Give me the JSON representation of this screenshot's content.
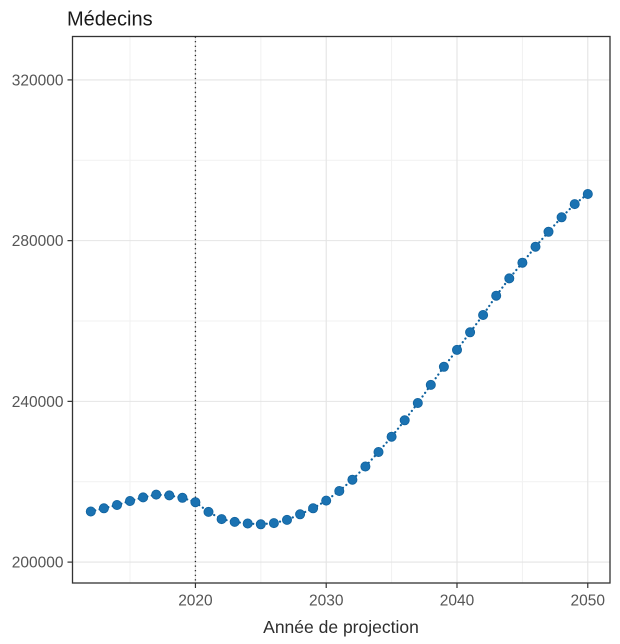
{
  "page": {
    "background": "#ffffff"
  },
  "chart": {
    "title": "Médecins",
    "x_axis_label": "Année de projection"
  },
  "chart_data": {
    "type": "line",
    "title": "Médecins",
    "xlabel": "Année de projection",
    "ylabel": "",
    "style": "points-with-dotted-line",
    "x": [
      2012,
      2013,
      2014,
      2015,
      2016,
      2017,
      2018,
      2019,
      2020,
      2021,
      2022,
      2023,
      2024,
      2025,
      2026,
      2027,
      2028,
      2029,
      2030,
      2031,
      2032,
      2033,
      2034,
      2035,
      2036,
      2037,
      2038,
      2039,
      2040,
      2041,
      2042,
      2043,
      2044,
      2045,
      2046,
      2047,
      2048,
      2049,
      2050
    ],
    "y": [
      212600,
      213400,
      214200,
      215200,
      216100,
      216800,
      216600,
      216000,
      214900,
      212500,
      210700,
      210000,
      209600,
      209400,
      209700,
      210500,
      211900,
      213400,
      215300,
      217700,
      220500,
      223800,
      227400,
      231200,
      235300,
      239600,
      244100,
      248600,
      252800,
      257200,
      261500,
      266300,
      270600,
      274500,
      278500,
      282200,
      285800,
      289100,
      291600
    ],
    "x_major_ticks": [
      2020,
      2030,
      2040,
      2050
    ],
    "x_tick_labels": [
      "2020",
      "2030",
      "2040",
      "2050"
    ],
    "x_minor_gridlines": [
      2015,
      2025,
      2035,
      2045
    ],
    "y_major_ticks": [
      200000,
      240000,
      280000,
      320000
    ],
    "y_tick_labels": [
      "200000",
      "240000",
      "280000",
      "320000"
    ],
    "y_minor_gridlines": [
      220000,
      260000,
      300000
    ],
    "xlim": [
      2010.6,
      2051.7
    ],
    "ylim": [
      194800,
      330800
    ],
    "reference_line": {
      "axis": "x",
      "value": 2020,
      "style": "dotted"
    },
    "grid": "major+minor",
    "legend": "none",
    "colors": {
      "point": "#1a72b2",
      "line": "#10629e",
      "reference": "#1a1a1a",
      "grid_major": "#e4e4e4",
      "grid_minor": "#f1f1f1",
      "panel_border": "#333333",
      "tick_color": "#333333"
    }
  }
}
